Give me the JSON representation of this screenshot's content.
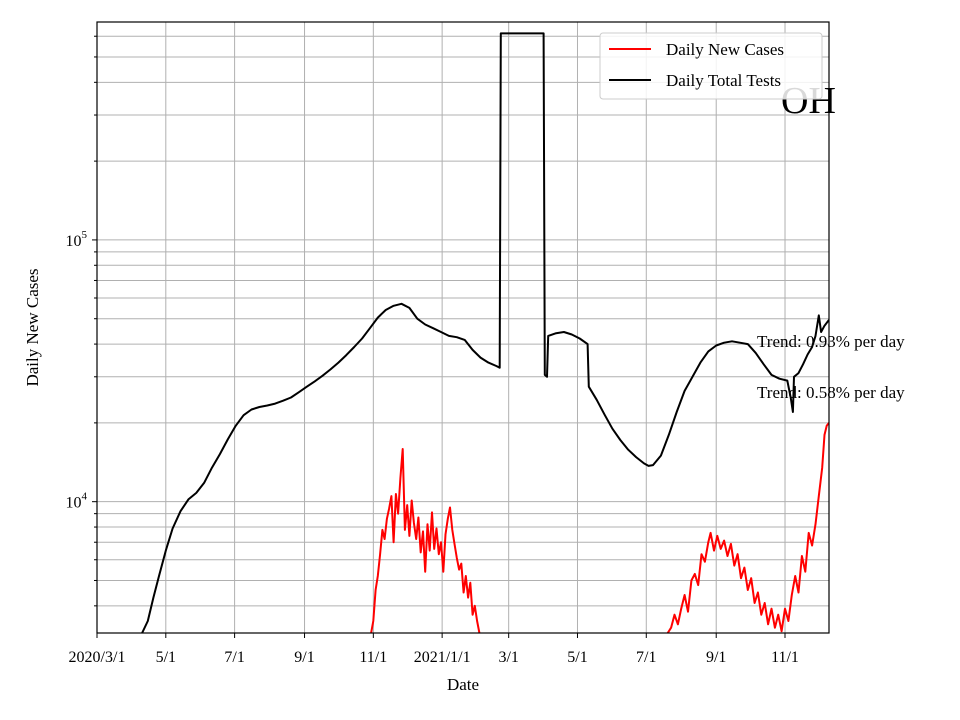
{
  "chart_data": {
    "type": "line",
    "state_label": "OH",
    "xlabel": "Date",
    "ylabel": "Daily New Cases",
    "y_scale": "log",
    "ylim": [
      3150,
      680000
    ],
    "xlim": [
      "2020-03-01",
      "2021-12-10"
    ],
    "grid": true,
    "legend_position": "top-right",
    "x_tick_labels": [
      {
        "date": "2020-03-01",
        "label": "2020/3/1"
      },
      {
        "date": "2020-05-01",
        "label": "5/1"
      },
      {
        "date": "2020-07-01",
        "label": "7/1"
      },
      {
        "date": "2020-09-01",
        "label": "9/1"
      },
      {
        "date": "2020-11-01",
        "label": "11/1"
      },
      {
        "date": "2021-01-01",
        "label": "2021/1/1"
      },
      {
        "date": "2021-03-01",
        "label": "3/1"
      },
      {
        "date": "2021-05-01",
        "label": "5/1"
      },
      {
        "date": "2021-07-01",
        "label": "7/1"
      },
      {
        "date": "2021-09-01",
        "label": "9/1"
      },
      {
        "date": "2021-11-01",
        "label": "11/1"
      }
    ],
    "y_tick_labels": [
      {
        "value": 10000,
        "base": "10",
        "exp": "4"
      },
      {
        "value": 100000,
        "base": "10",
        "exp": "5"
      }
    ],
    "annotations": [
      "Trend: 0.93% per day",
      "Trend: 0.58% per day"
    ],
    "series": [
      {
        "name": "Daily New Cases",
        "color": "#ff0000",
        "points": [
          [
            "2020-10-30",
            3150
          ],
          [
            "2020-11-01",
            3500
          ],
          [
            "2020-11-03",
            4600
          ],
          [
            "2020-11-05",
            5200
          ],
          [
            "2020-11-07",
            6300
          ],
          [
            "2020-11-09",
            7800
          ],
          [
            "2020-11-11",
            7200
          ],
          [
            "2020-11-13",
            8600
          ],
          [
            "2020-11-15",
            9400
          ],
          [
            "2020-11-17",
            10500
          ],
          [
            "2020-11-19",
            7000
          ],
          [
            "2020-11-21",
            10700
          ],
          [
            "2020-11-23",
            9000
          ],
          [
            "2020-11-25",
            12300
          ],
          [
            "2020-11-27",
            15900
          ],
          [
            "2020-11-29",
            7800
          ],
          [
            "2020-12-01",
            9700
          ],
          [
            "2020-12-03",
            7400
          ],
          [
            "2020-12-05",
            10100
          ],
          [
            "2020-12-07",
            8300
          ],
          [
            "2020-12-09",
            7200
          ],
          [
            "2020-12-11",
            8700
          ],
          [
            "2020-12-13",
            6400
          ],
          [
            "2020-12-15",
            7700
          ],
          [
            "2020-12-17",
            5400
          ],
          [
            "2020-12-19",
            8200
          ],
          [
            "2020-12-21",
            6500
          ],
          [
            "2020-12-23",
            9100
          ],
          [
            "2020-12-25",
            6600
          ],
          [
            "2020-12-27",
            7900
          ],
          [
            "2020-12-29",
            6300
          ],
          [
            "2020-12-31",
            7000
          ],
          [
            "2021-01-02",
            5400
          ],
          [
            "2021-01-04",
            7500
          ],
          [
            "2021-01-06",
            8600
          ],
          [
            "2021-01-08",
            9500
          ],
          [
            "2021-01-10",
            7800
          ],
          [
            "2021-01-12",
            6900
          ],
          [
            "2021-01-14",
            6100
          ],
          [
            "2021-01-16",
            5500
          ],
          [
            "2021-01-18",
            5800
          ],
          [
            "2021-01-20",
            4500
          ],
          [
            "2021-01-22",
            5200
          ],
          [
            "2021-01-24",
            4300
          ],
          [
            "2021-01-26",
            4900
          ],
          [
            "2021-01-28",
            3700
          ],
          [
            "2021-01-30",
            4000
          ],
          [
            "2021-02-01",
            3500
          ],
          [
            "2021-02-03",
            3150
          ],
          [
            "2021-07-20",
            3150
          ],
          [
            "2021-07-23",
            3300
          ],
          [
            "2021-07-26",
            3700
          ],
          [
            "2021-07-29",
            3400
          ],
          [
            "2021-08-01",
            3900
          ],
          [
            "2021-08-04",
            4400
          ],
          [
            "2021-08-07",
            3800
          ],
          [
            "2021-08-10",
            5000
          ],
          [
            "2021-08-13",
            5300
          ],
          [
            "2021-08-16",
            4800
          ],
          [
            "2021-08-19",
            6300
          ],
          [
            "2021-08-22",
            5900
          ],
          [
            "2021-08-25",
            7000
          ],
          [
            "2021-08-27",
            7600
          ],
          [
            "2021-08-30",
            6500
          ],
          [
            "2021-09-02",
            7400
          ],
          [
            "2021-09-05",
            6600
          ],
          [
            "2021-09-08",
            7100
          ],
          [
            "2021-09-11",
            6200
          ],
          [
            "2021-09-14",
            6900
          ],
          [
            "2021-09-17",
            5700
          ],
          [
            "2021-09-20",
            6300
          ],
          [
            "2021-09-23",
            5100
          ],
          [
            "2021-09-26",
            5600
          ],
          [
            "2021-09-29",
            4600
          ],
          [
            "2021-10-02",
            5100
          ],
          [
            "2021-10-05",
            4100
          ],
          [
            "2021-10-08",
            4500
          ],
          [
            "2021-10-11",
            3700
          ],
          [
            "2021-10-14",
            4100
          ],
          [
            "2021-10-17",
            3400
          ],
          [
            "2021-10-20",
            3900
          ],
          [
            "2021-10-23",
            3300
          ],
          [
            "2021-10-26",
            3700
          ],
          [
            "2021-10-29",
            3200
          ],
          [
            "2021-11-01",
            3900
          ],
          [
            "2021-11-04",
            3500
          ],
          [
            "2021-11-07",
            4400
          ],
          [
            "2021-11-10",
            5200
          ],
          [
            "2021-11-13",
            4500
          ],
          [
            "2021-11-16",
            6200
          ],
          [
            "2021-11-19",
            5400
          ],
          [
            "2021-11-22",
            7600
          ],
          [
            "2021-11-25",
            6800
          ],
          [
            "2021-11-28",
            8200
          ],
          [
            "2021-12-01",
            10500
          ],
          [
            "2021-12-04",
            13500
          ],
          [
            "2021-12-06",
            18000
          ],
          [
            "2021-12-08",
            19500
          ],
          [
            "2021-12-10",
            20000
          ]
        ]
      },
      {
        "name": "Daily Total Tests",
        "color": "#000000",
        "points": [
          [
            "2020-04-10",
            3150
          ],
          [
            "2020-04-15",
            3500
          ],
          [
            "2020-04-20",
            4300
          ],
          [
            "2020-04-25",
            5200
          ],
          [
            "2020-05-01",
            6500
          ],
          [
            "2020-05-07",
            7900
          ],
          [
            "2020-05-14",
            9200
          ],
          [
            "2020-05-21",
            10200
          ],
          [
            "2020-05-28",
            10800
          ],
          [
            "2020-06-04",
            11800
          ],
          [
            "2020-06-11",
            13500
          ],
          [
            "2020-06-18",
            15200
          ],
          [
            "2020-06-25",
            17300
          ],
          [
            "2020-07-02",
            19500
          ],
          [
            "2020-07-09",
            21400
          ],
          [
            "2020-07-16",
            22500
          ],
          [
            "2020-07-23",
            23000
          ],
          [
            "2020-07-30",
            23300
          ],
          [
            "2020-08-06",
            23700
          ],
          [
            "2020-08-13",
            24300
          ],
          [
            "2020-08-20",
            25000
          ],
          [
            "2020-08-27",
            26200
          ],
          [
            "2020-09-03",
            27500
          ],
          [
            "2020-09-10",
            28800
          ],
          [
            "2020-09-17",
            30300
          ],
          [
            "2020-09-24",
            32000
          ],
          [
            "2020-10-01",
            34000
          ],
          [
            "2020-10-08",
            36300
          ],
          [
            "2020-10-15",
            39000
          ],
          [
            "2020-10-22",
            42000
          ],
          [
            "2020-10-29",
            46000
          ],
          [
            "2020-11-05",
            50500
          ],
          [
            "2020-11-12",
            54000
          ],
          [
            "2020-11-19",
            56000
          ],
          [
            "2020-11-26",
            57000
          ],
          [
            "2020-12-03",
            55000
          ],
          [
            "2020-12-10",
            50000
          ],
          [
            "2020-12-17",
            47500
          ],
          [
            "2020-12-24",
            46000
          ],
          [
            "2020-12-31",
            44500
          ],
          [
            "2021-01-07",
            43000
          ],
          [
            "2021-01-14",
            42500
          ],
          [
            "2021-01-21",
            41500
          ],
          [
            "2021-01-28",
            38000
          ],
          [
            "2021-02-04",
            35500
          ],
          [
            "2021-02-11",
            34000
          ],
          [
            "2021-02-18",
            33000
          ],
          [
            "2021-02-21",
            32500
          ],
          [
            "2021-02-22",
            615000
          ],
          [
            "2021-04-01",
            615000
          ],
          [
            "2021-04-02",
            30500
          ],
          [
            "2021-04-04",
            30000
          ],
          [
            "2021-04-05",
            43000
          ],
          [
            "2021-04-12",
            44000
          ],
          [
            "2021-04-19",
            44500
          ],
          [
            "2021-04-26",
            43500
          ],
          [
            "2021-05-03",
            42000
          ],
          [
            "2021-05-10",
            40000
          ],
          [
            "2021-05-11",
            27500
          ],
          [
            "2021-05-18",
            24500
          ],
          [
            "2021-05-25",
            21500
          ],
          [
            "2021-06-01",
            19000
          ],
          [
            "2021-06-08",
            17200
          ],
          [
            "2021-06-15",
            15800
          ],
          [
            "2021-06-22",
            14800
          ],
          [
            "2021-06-29",
            14000
          ],
          [
            "2021-07-03",
            13700
          ],
          [
            "2021-07-07",
            13800
          ],
          [
            "2021-07-14",
            15000
          ],
          [
            "2021-07-21",
            18000
          ],
          [
            "2021-07-28",
            22000
          ],
          [
            "2021-08-04",
            26500
          ],
          [
            "2021-08-11",
            30000
          ],
          [
            "2021-08-18",
            34000
          ],
          [
            "2021-08-25",
            37500
          ],
          [
            "2021-09-01",
            39500
          ],
          [
            "2021-09-08",
            40500
          ],
          [
            "2021-09-15",
            41000
          ],
          [
            "2021-09-22",
            40500
          ],
          [
            "2021-09-29",
            40000
          ],
          [
            "2021-10-06",
            37000
          ],
          [
            "2021-10-13",
            33500
          ],
          [
            "2021-10-20",
            30500
          ],
          [
            "2021-10-27",
            29500
          ],
          [
            "2021-11-03",
            29000
          ],
          [
            "2021-11-06",
            25000
          ],
          [
            "2021-11-08",
            22000
          ],
          [
            "2021-11-09",
            30000
          ],
          [
            "2021-11-13",
            31000
          ],
          [
            "2021-11-17",
            33500
          ],
          [
            "2021-11-21",
            36500
          ],
          [
            "2021-11-25",
            39000
          ],
          [
            "2021-11-28",
            43000
          ],
          [
            "2021-12-01",
            51500
          ],
          [
            "2021-12-03",
            44500
          ],
          [
            "2021-12-06",
            47000
          ],
          [
            "2021-12-10",
            49500
          ]
        ]
      }
    ]
  }
}
